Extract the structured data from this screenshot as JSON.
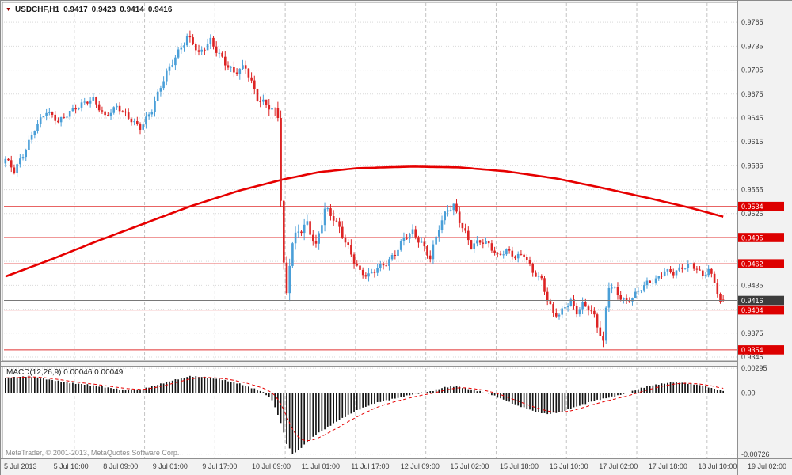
{
  "header": {
    "window_marker_icon": "▼",
    "symbol": "USDCHF,H1",
    "open": "0.9417",
    "high": "0.9423",
    "low": "0.9414",
    "close": "0.9416"
  },
  "copyright": "MetaTrader, © 2001-2013, MetaQuotes Software Corp.",
  "colors": {
    "background": "#ffffff",
    "frame_bg": "#f2f2f2",
    "pane_border": "#909090",
    "grid": "#d9d9d9",
    "separator": "#c4c4c4",
    "bull": "#4a9fd8",
    "bear": "#dd2424",
    "ma_line": "#e60000",
    "level_line": "#e03030",
    "level_box_bg": "#dd0000",
    "level_box_text": "#ffffff",
    "current_price_box_bg": "#3c3c3c",
    "current_price_line": "#787878",
    "axis_text": "#3a3a3a",
    "macd_histogram": "#151515",
    "macd_signal": "#e60000"
  },
  "price_axis": {
    "grid": {
      "start": 0.9345,
      "step": 0.003,
      "count": 15
    },
    "visible_ticks": [
      "0.9765",
      "0.9735",
      "0.9705",
      "0.9675",
      "0.9645",
      "0.9615",
      "0.9585",
      "0.9555",
      "0.9525",
      "0.9435",
      "0.9375",
      "0.9345"
    ],
    "current_price": "0.9416"
  },
  "levels": [
    {
      "price": 0.9534,
      "label": "0.9534"
    },
    {
      "price": 0.9495,
      "label": "0.9495"
    },
    {
      "price": 0.9462,
      "label": "0.9462"
    },
    {
      "price": 0.9404,
      "label": "0.9404"
    },
    {
      "price": 0.9354,
      "label": "0.9354"
    }
  ],
  "time_axis": {
    "labels": [
      "5 Jul 2013",
      "5 Jul 16:00",
      "8 Jul 09:00",
      "9 Jul 01:00",
      "9 Jul 17:00",
      "10 Jul 09:00",
      "11 Jul 01:00",
      "11 Jul 17:00",
      "12 Jul 09:00",
      "15 Jul 02:00",
      "15 Jul 18:00",
      "16 Jul 10:00",
      "17 Jul 02:00",
      "17 Jul 18:00",
      "18 Jul 10:00",
      "19 Jul 02:00"
    ]
  },
  "macd_panel": {
    "label": "MACD(12,26,9) 0.00046 0.00049",
    "axis_ticks": [
      {
        "label": "0.00295",
        "value": 0.00295
      },
      {
        "label": "0.00",
        "value": 0
      },
      {
        "label": "-0.00726",
        "value": -0.00726
      }
    ]
  },
  "chart_data": {
    "type": "candlestick",
    "symbol": "USDCHF",
    "timeframe": "H1",
    "bars": 246,
    "bars_per_day": 24,
    "day_separator_indices": [
      24,
      48,
      72,
      96,
      120,
      144,
      168,
      192,
      216,
      240
    ],
    "price_range": {
      "max": 0.979,
      "min": 0.934
    },
    "last_candle": {
      "open": 0.9417,
      "high": 0.9423,
      "low": 0.9414,
      "close": 0.9416
    },
    "close_waypoints": [
      [
        0,
        0.9592
      ],
      [
        3,
        0.9578
      ],
      [
        6,
        0.96
      ],
      [
        10,
        0.9632
      ],
      [
        14,
        0.9652
      ],
      [
        18,
        0.9641
      ],
      [
        22,
        0.9654
      ],
      [
        26,
        0.9661
      ],
      [
        30,
        0.9668
      ],
      [
        34,
        0.9648
      ],
      [
        38,
        0.9659
      ],
      [
        42,
        0.9644
      ],
      [
        46,
        0.9634
      ],
      [
        50,
        0.9656
      ],
      [
        54,
        0.9692
      ],
      [
        58,
        0.9722
      ],
      [
        62,
        0.9748
      ],
      [
        64,
        0.974
      ],
      [
        66,
        0.9723
      ],
      [
        70,
        0.9741
      ],
      [
        74,
        0.9721
      ],
      [
        78,
        0.9701
      ],
      [
        82,
        0.9707
      ],
      [
        86,
        0.9671
      ],
      [
        90,
        0.9661
      ],
      [
        93,
        0.9646
      ],
      [
        94,
        0.9542
      ],
      [
        95,
        0.9456
      ],
      [
        96,
        0.9421
      ],
      [
        97,
        0.9464
      ],
      [
        98,
        0.9489
      ],
      [
        100,
        0.9506
      ],
      [
        103,
        0.9513
      ],
      [
        106,
        0.9481
      ],
      [
        109,
        0.9529
      ],
      [
        112,
        0.9521
      ],
      [
        115,
        0.9501
      ],
      [
        118,
        0.9473
      ],
      [
        121,
        0.9449
      ],
      [
        124,
        0.9447
      ],
      [
        127,
        0.9459
      ],
      [
        130,
        0.9463
      ],
      [
        133,
        0.9473
      ],
      [
        136,
        0.9493
      ],
      [
        139,
        0.9503
      ],
      [
        142,
        0.9489
      ],
      [
        145,
        0.9469
      ],
      [
        148,
        0.9506
      ],
      [
        151,
        0.9531
      ],
      [
        153,
        0.9536
      ],
      [
        156,
        0.9509
      ],
      [
        159,
        0.9483
      ],
      [
        162,
        0.9489
      ],
      [
        165,
        0.9487
      ],
      [
        168,
        0.9473
      ],
      [
        171,
        0.9479
      ],
      [
        174,
        0.9469
      ],
      [
        177,
        0.9473
      ],
      [
        180,
        0.9453
      ],
      [
        183,
        0.9443
      ],
      [
        185,
        0.9416
      ],
      [
        187,
        0.9399
      ],
      [
        189,
        0.9396
      ],
      [
        191,
        0.9409
      ],
      [
        193,
        0.9416
      ],
      [
        195,
        0.9403
      ],
      [
        197,
        0.9411
      ],
      [
        199,
        0.9406
      ],
      [
        201,
        0.9393
      ],
      [
        203,
        0.9373
      ],
      [
        204,
        0.9361
      ],
      [
        205,
        0.9406
      ],
      [
        206,
        0.9437
      ],
      [
        208,
        0.9431
      ],
      [
        210,
        0.9421
      ],
      [
        212,
        0.9413
      ],
      [
        214,
        0.9419
      ],
      [
        216,
        0.9427
      ],
      [
        219,
        0.9439
      ],
      [
        222,
        0.9443
      ],
      [
        225,
        0.9453
      ],
      [
        228,
        0.9449
      ],
      [
        231,
        0.9457
      ],
      [
        234,
        0.9463
      ],
      [
        236,
        0.9456
      ],
      [
        238,
        0.9447
      ],
      [
        240,
        0.9453
      ],
      [
        242,
        0.9439
      ],
      [
        243,
        0.9425
      ],
      [
        244,
        0.9411
      ],
      [
        245,
        0.9416
      ]
    ],
    "volatility_waypoints": [
      [
        0,
        0.0007
      ],
      [
        40,
        0.0006
      ],
      [
        55,
        0.0008
      ],
      [
        88,
        0.0009
      ],
      [
        94,
        0.0013
      ],
      [
        99,
        0.0012
      ],
      [
        110,
        0.001
      ],
      [
        130,
        0.0007
      ],
      [
        150,
        0.0009
      ],
      [
        170,
        0.0006
      ],
      [
        195,
        0.0007
      ],
      [
        204,
        0.001
      ],
      [
        215,
        0.0006
      ],
      [
        245,
        0.0006
      ]
    ],
    "ma_waypoints": [
      [
        0,
        0.9446
      ],
      [
        16,
        0.9468
      ],
      [
        31,
        0.949
      ],
      [
        47,
        0.9512
      ],
      [
        63,
        0.9534
      ],
      [
        80,
        0.9554
      ],
      [
        95,
        0.9568
      ],
      [
        107,
        0.9577
      ],
      [
        120,
        0.9582
      ],
      [
        139,
        0.9584
      ],
      [
        155,
        0.9583
      ],
      [
        171,
        0.9578
      ],
      [
        188,
        0.9569
      ],
      [
        204,
        0.9557
      ],
      [
        220,
        0.9544
      ],
      [
        234,
        0.9532
      ],
      [
        245,
        0.9521
      ]
    ],
    "macd": {
      "value_range": {
        "max": 0.00315,
        "min": -0.00775
      },
      "signal_smoothing": 0.2,
      "waypoints": [
        [
          0,
          0.0018
        ],
        [
          8,
          0.002
        ],
        [
          15,
          0.0016
        ],
        [
          22,
          0.0012
        ],
        [
          28,
          0.001
        ],
        [
          34,
          0.0007
        ],
        [
          40,
          0.0004
        ],
        [
          46,
          0.0004
        ],
        [
          52,
          0.001
        ],
        [
          58,
          0.0016
        ],
        [
          63,
          0.002
        ],
        [
          68,
          0.0019
        ],
        [
          74,
          0.0016
        ],
        [
          80,
          0.0011
        ],
        [
          85,
          0.0005
        ],
        [
          88,
          0.0001
        ],
        [
          91,
          -0.0008
        ],
        [
          94,
          -0.0035
        ],
        [
          96,
          -0.006
        ],
        [
          98,
          -0.0072
        ],
        [
          100,
          -0.0068
        ],
        [
          103,
          -0.0058
        ],
        [
          107,
          -0.0047
        ],
        [
          112,
          -0.0036
        ],
        [
          117,
          -0.0026
        ],
        [
          121,
          -0.0019
        ],
        [
          126,
          -0.0012
        ],
        [
          131,
          -0.0008
        ],
        [
          136,
          -0.0004
        ],
        [
          140,
          -0.0001
        ],
        [
          145,
          0.0002
        ],
        [
          150,
          0.0007
        ],
        [
          154,
          0.0008
        ],
        [
          158,
          0.0005
        ],
        [
          162,
          0.0002
        ],
        [
          166,
          -0.0002
        ],
        [
          170,
          -0.0008
        ],
        [
          175,
          -0.0015
        ],
        [
          180,
          -0.0021
        ],
        [
          185,
          -0.0025
        ],
        [
          190,
          -0.0022
        ],
        [
          195,
          -0.0016
        ],
        [
          200,
          -0.001
        ],
        [
          205,
          -0.0006
        ],
        [
          209,
          -0.0003
        ],
        [
          213,
          0.0001
        ],
        [
          217,
          0.0006
        ],
        [
          222,
          0.001
        ],
        [
          228,
          0.0013
        ],
        [
          232,
          0.0012
        ],
        [
          236,
          0.001
        ],
        [
          240,
          0.0007
        ],
        [
          243,
          0.0004
        ],
        [
          245,
          0.0003
        ]
      ]
    }
  }
}
